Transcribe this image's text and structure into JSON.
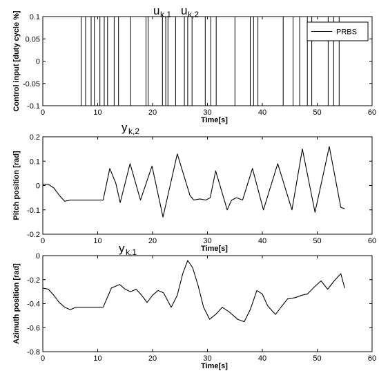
{
  "chart_data": [
    {
      "type": "line",
      "title": "",
      "xlabel": "Time[s]",
      "ylabel": "Control input [duty cycle %]",
      "xlim": [
        0,
        60
      ],
      "ylim": [
        -0.1,
        0.1
      ],
      "xticks": [
        0,
        10,
        20,
        30,
        40,
        50,
        60
      ],
      "yticks": [
        -0.1,
        -0.05,
        0,
        0.05,
        0.1
      ],
      "ytick_labels": [
        "-0.1",
        "-0.05",
        "0",
        "0.05",
        "0.1"
      ],
      "legend": {
        "entries": [
          "PRBS"
        ],
        "placement": "top-right"
      },
      "annotations": [
        {
          "base": "u",
          "sub": "k,1"
        },
        {
          "base": "u",
          "sub": "k,2"
        }
      ],
      "series": [
        {
          "name": "PRBS",
          "switch_times": [
            7,
            7.8,
            8.8,
            9.4,
            10.4,
            11.2,
            11.8,
            13,
            13.8,
            16,
            18.8,
            19.2,
            21.8,
            22.4,
            22.8,
            24.2,
            25.8,
            26.4,
            27.2,
            29.6,
            30.6,
            31.6,
            35,
            37.8,
            38.4,
            39.2,
            43.8,
            45.6,
            46.8,
            48.2,
            49,
            52,
            53,
            54
          ]
        }
      ]
    },
    {
      "type": "line",
      "title": "",
      "xlabel": "Time[s]",
      "ylabel": "Pitch position [rad]",
      "xlim": [
        0,
        60
      ],
      "ylim": [
        -0.2,
        0.2
      ],
      "xticks": [
        0,
        10,
        20,
        30,
        40,
        50,
        60
      ],
      "yticks": [
        -0.2,
        -0.1,
        0,
        0.1,
        0.2
      ],
      "ytick_labels": [
        "-0.2",
        "-0.1",
        "0",
        "0.1",
        "0.2"
      ],
      "annotations": [
        {
          "base": "y",
          "sub": "k,2"
        }
      ],
      "series": [
        {
          "x": [
            0,
            1,
            2,
            3,
            4,
            5,
            6,
            7,
            8,
            9,
            10,
            11,
            12.2,
            13.3,
            14.1,
            15.9,
            17.8,
            19.9,
            21.9,
            24.5,
            26.8,
            27.5,
            28.6,
            29.7,
            30.5,
            31.5,
            33.6,
            34.4,
            35.3,
            36.4,
            38.2,
            40.2,
            42.8,
            45.4,
            47.3,
            49.6,
            52.2,
            54.3,
            55
          ],
          "y": [
            0.005,
            0.005,
            -0.01,
            -0.04,
            -0.065,
            -0.06,
            -0.06,
            -0.06,
            -0.06,
            -0.06,
            -0.06,
            -0.06,
            0.07,
            0.01,
            -0.07,
            0.09,
            -0.06,
            0.08,
            -0.13,
            0.13,
            -0.04,
            -0.06,
            -0.055,
            -0.06,
            -0.05,
            0.06,
            -0.1,
            -0.06,
            -0.05,
            -0.06,
            0.07,
            -0.1,
            0.09,
            -0.1,
            0.15,
            -0.11,
            0.16,
            -0.09,
            -0.095
          ]
        }
      ]
    },
    {
      "type": "line",
      "title": "",
      "xlabel": "Time[s]",
      "ylabel": "Azimuth position [rad]",
      "xlim": [
        0,
        60
      ],
      "ylim": [
        -0.8,
        0
      ],
      "xticks": [
        0,
        10,
        20,
        30,
        40,
        50,
        60
      ],
      "yticks": [
        -0.8,
        -0.6,
        -0.4,
        -0.2,
        0
      ],
      "ytick_labels": [
        "-0.8",
        "-0.6",
        "-0.4",
        "-0.2",
        "0"
      ],
      "annotations": [
        {
          "base": "y",
          "sub": "k,1"
        }
      ],
      "series": [
        {
          "x": [
            0,
            1,
            2,
            3,
            4,
            5,
            6,
            7,
            8,
            9,
            10,
            11,
            12.5,
            14,
            15,
            16,
            17,
            18,
            19,
            20,
            21,
            22,
            23.4,
            24.5,
            25.5,
            26.4,
            27.3,
            28.3,
            29.3,
            30.4,
            31.5,
            32.7,
            34,
            35.5,
            36.7,
            37.8,
            39,
            40,
            41,
            42.4,
            43.4,
            44.6,
            46,
            47.2,
            48.2,
            49.5,
            50.7,
            51.9,
            53.1,
            54.3,
            55
          ],
          "y": [
            -0.27,
            -0.28,
            -0.33,
            -0.39,
            -0.43,
            -0.45,
            -0.43,
            -0.43,
            -0.43,
            -0.43,
            -0.43,
            -0.43,
            -0.27,
            -0.24,
            -0.28,
            -0.3,
            -0.28,
            -0.33,
            -0.39,
            -0.33,
            -0.29,
            -0.31,
            -0.43,
            -0.33,
            -0.15,
            -0.04,
            -0.1,
            -0.25,
            -0.43,
            -0.53,
            -0.49,
            -0.43,
            -0.47,
            -0.53,
            -0.55,
            -0.45,
            -0.29,
            -0.32,
            -0.42,
            -0.49,
            -0.43,
            -0.36,
            -0.35,
            -0.33,
            -0.32,
            -0.26,
            -0.21,
            -0.28,
            -0.21,
            -0.15,
            -0.27
          ]
        }
      ]
    }
  ]
}
